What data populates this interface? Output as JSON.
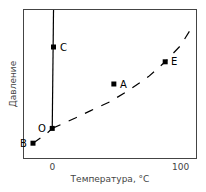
{
  "chart_data": {
    "type": "line",
    "xlabel": "Температура, °C",
    "ylabel": "Давление",
    "xlim": [
      -22,
      112
    ],
    "ylim": [
      0,
      100
    ],
    "xticks": [
      0,
      100
    ],
    "tick_labels": "x",
    "grid": false,
    "series": [
      {
        "x": [
          -15,
          -10,
          -5,
          0
        ],
        "values": [
          10,
          13,
          16,
          20
        ],
        "color": "#000000",
        "line_style": "dashed"
      },
      {
        "x": [
          0,
          0.3,
          0.6,
          0.8,
          1.0,
          1.0
        ],
        "values": [
          20,
          35,
          52,
          64,
          75,
          100
        ],
        "color": "#000000",
        "line_style": "solid"
      },
      {
        "x": [
          0,
          8,
          18,
          30,
          45,
          60,
          75,
          88,
          100,
          110
        ],
        "values": [
          20,
          23,
          27,
          32,
          38,
          46,
          55,
          65,
          76,
          90
        ],
        "color": "#000000",
        "line_style": "dashed"
      },
      {
        "type": "scatter",
        "x": [
          -15,
          0,
          1,
          48,
          88
        ],
        "values": [
          10,
          20,
          75,
          50,
          65
        ],
        "color": "#000000",
        "marker": "square"
      }
    ],
    "annotations": [
      {
        "text": "B",
        "x": -15,
        "y": 10
      },
      {
        "text": "O",
        "x": 0,
        "y": 20
      },
      {
        "text": "C",
        "x": 1,
        "y": 75
      },
      {
        "text": "A",
        "x": 48,
        "y": 50
      },
      {
        "text": "E",
        "x": 88,
        "y": 65
      }
    ]
  }
}
